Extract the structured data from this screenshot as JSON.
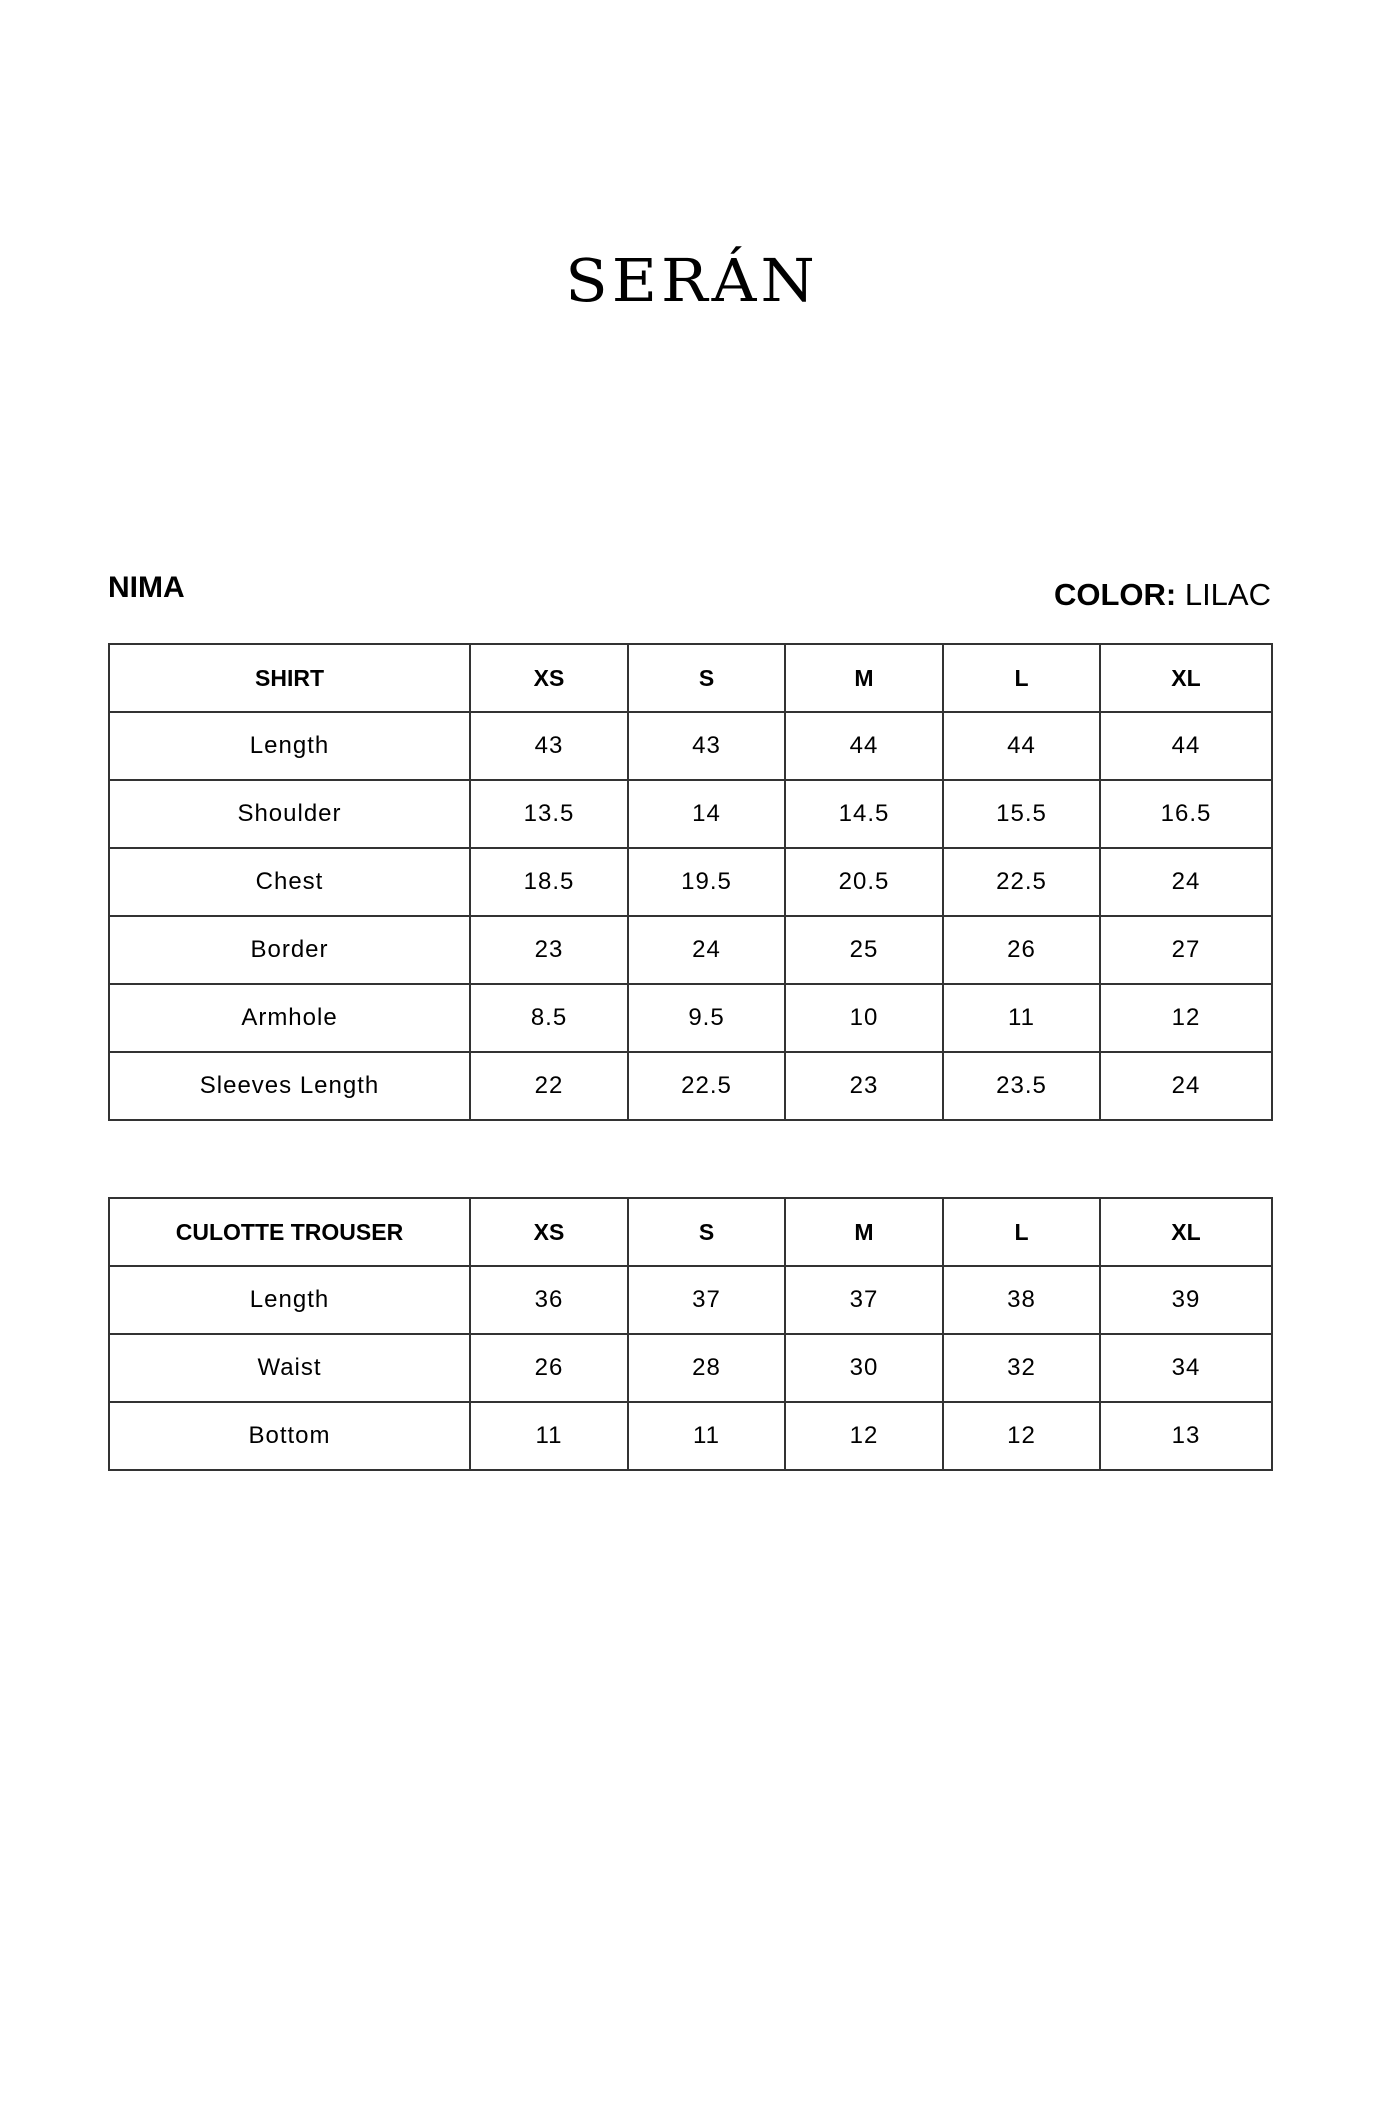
{
  "brand": "SERÁN",
  "product": "NIMA",
  "color_label": "COLOR:",
  "color_value": "LILAC",
  "tables": [
    {
      "headers": [
        "SHIRT",
        "XS",
        "S",
        "M",
        "L",
        "XL"
      ],
      "rows": [
        [
          "Length",
          "43",
          "43",
          "44",
          "44",
          "44"
        ],
        [
          "Shoulder",
          "13.5",
          "14",
          "14.5",
          "15.5",
          "16.5"
        ],
        [
          "Chest",
          "18.5",
          "19.5",
          "20.5",
          "22.5",
          "24"
        ],
        [
          "Border",
          "23",
          "24",
          "25",
          "26",
          "27"
        ],
        [
          "Armhole",
          "8.5",
          "9.5",
          "10",
          "11",
          "12"
        ],
        [
          "Sleeves Length",
          "22",
          "22.5",
          "23",
          "23.5",
          "24"
        ]
      ]
    },
    {
      "headers": [
        "CULOTTE TROUSER",
        "XS",
        "S",
        "M",
        "L",
        "XL"
      ],
      "rows": [
        [
          "Length",
          "36",
          "37",
          "37",
          "38",
          "39"
        ],
        [
          "Waist",
          "26",
          "28",
          "30",
          "32",
          "34"
        ],
        [
          "Bottom",
          "11",
          "11",
          "12",
          "12",
          "13"
        ]
      ]
    }
  ]
}
